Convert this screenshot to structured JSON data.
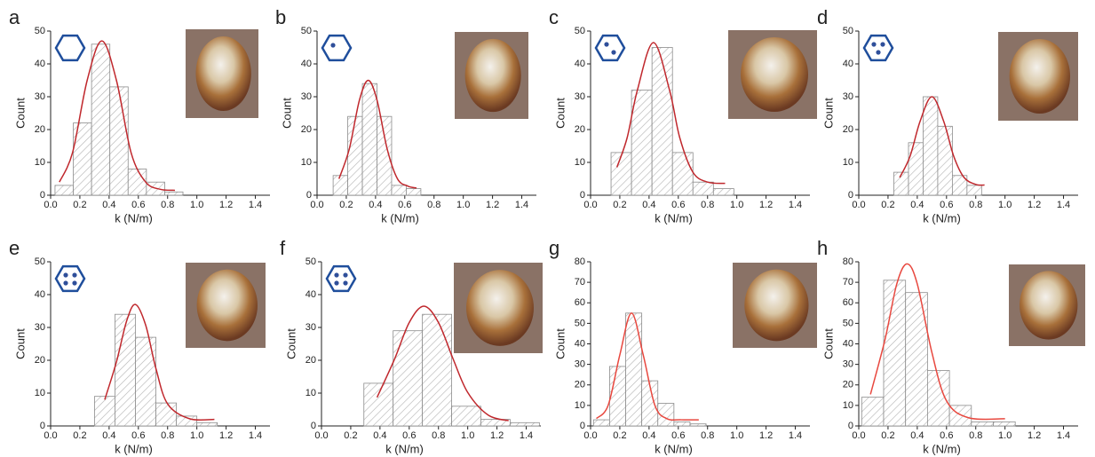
{
  "chart_data": [
    {
      "type": "histogram",
      "label": "a",
      "x_label": "k (N/m)",
      "y_label": "Count",
      "bins": [
        0.03,
        0.155,
        0.28,
        0.405,
        0.53,
        0.655,
        0.78,
        0.905
      ],
      "values": [
        3,
        22,
        46,
        33,
        8,
        4,
        1
      ],
      "color": "#8c8c8c",
      "fit": {
        "x": [
          0.06,
          0.15,
          0.25,
          0.35,
          0.45,
          0.55,
          0.65,
          0.75,
          0.85
        ],
        "values": [
          4,
          13,
          35,
          47,
          35,
          13,
          4,
          1.8,
          1.5
        ],
        "color": "#c0282d"
      },
      "xlim": [
        0,
        1.5
      ],
      "xticks": [
        {
          "value": 0,
          "label": "0.0"
        },
        0.2,
        0.4,
        0.6,
        0.8,
        {
          "value": 1,
          "label": "1.0"
        },
        1.2,
        1.4
      ],
      "ylim": [
        0,
        50
      ],
      "yticks": [
        0,
        10,
        20,
        30,
        40,
        50
      ]
    },
    {
      "type": "histogram",
      "label": "b",
      "x_label": "k (N/m)",
      "y_label": "Count",
      "bins": [
        0.11,
        0.21,
        0.31,
        0.41,
        0.51,
        0.61,
        0.71
      ],
      "values": [
        6,
        24,
        34,
        24,
        3,
        2
      ],
      "color": "#8c8c8c",
      "fit": {
        "x": [
          0.15,
          0.22,
          0.29,
          0.35,
          0.41,
          0.48,
          0.55,
          0.62,
          0.68
        ],
        "values": [
          5,
          14,
          29,
          35,
          29,
          14,
          5,
          2.8,
          2.2
        ],
        "color": "#c0282d"
      },
      "xlim": [
        0,
        1.5
      ],
      "xticks": [
        {
          "value": 0,
          "label": "0.0"
        },
        0.2,
        0.4,
        0.6,
        0.8,
        {
          "value": 1,
          "label": "1.0"
        },
        1.2,
        1.4
      ],
      "ylim": [
        0,
        50
      ],
      "yticks": [
        0,
        10,
        20,
        30,
        40,
        50
      ]
    },
    {
      "type": "histogram",
      "label": "c",
      "x_label": "k (N/m)",
      "y_label": "Count",
      "bins": [
        0.14,
        0.28,
        0.42,
        0.56,
        0.7,
        0.84,
        0.98
      ],
      "values": [
        13,
        32,
        45,
        13,
        4,
        2
      ],
      "color": "#8c8c8c",
      "fit": {
        "x": [
          0.18,
          0.25,
          0.32,
          0.43,
          0.54,
          0.61,
          0.7,
          0.8,
          0.92
        ],
        "values": [
          8.5,
          17.5,
          32,
          46.5,
          32,
          17.5,
          7,
          4,
          3.6
        ],
        "color": "#c0282d"
      },
      "xlim": [
        0,
        1.5
      ],
      "xticks": [
        {
          "value": 0,
          "label": "0.0"
        },
        0.2,
        0.4,
        0.6,
        0.8,
        {
          "value": 1,
          "label": "1.0"
        },
        1.2,
        1.4
      ],
      "ylim": [
        0,
        50
      ],
      "yticks": [
        0,
        10,
        20,
        30,
        40,
        50
      ]
    },
    {
      "type": "histogram",
      "label": "d",
      "x_label": "k (N/m)",
      "y_label": "Count",
      "bins": [
        0.24,
        0.34,
        0.44,
        0.54,
        0.64,
        0.74,
        0.84
      ],
      "values": [
        7,
        16,
        30,
        21,
        6,
        3
      ],
      "color": "#8c8c8c",
      "fit": {
        "x": [
          0.28,
          0.35,
          0.42,
          0.5,
          0.58,
          0.65,
          0.72,
          0.8,
          0.86
        ],
        "values": [
          5.4,
          11.8,
          22.6,
          30,
          22.6,
          11.8,
          5.4,
          3.3,
          3.1
        ],
        "color": "#c0282d"
      },
      "xlim": [
        0,
        1.5
      ],
      "xticks": [
        {
          "value": 0,
          "label": "0.0"
        },
        0.2,
        0.4,
        0.6,
        0.8,
        {
          "value": 1,
          "label": "1.0"
        },
        1.2,
        1.4
      ],
      "ylim": [
        0,
        50
      ],
      "yticks": [
        0,
        10,
        20,
        30,
        40,
        50
      ]
    },
    {
      "type": "histogram",
      "label": "e",
      "x_label": "k (N/m)",
      "y_label": "Count",
      "bins": [
        0.3,
        0.44,
        0.58,
        0.72,
        0.86,
        1.0,
        1.14
      ],
      "values": [
        9,
        34,
        27,
        7,
        3,
        1
      ],
      "color": "#8c8c8c",
      "fit": {
        "x": [
          0.37,
          0.45,
          0.52,
          0.58,
          0.65,
          0.72,
          0.8,
          0.95,
          1.12
        ],
        "values": [
          8,
          19.5,
          32,
          37,
          30.7,
          17.5,
          6.7,
          2.2,
          2
        ],
        "color": "#c0282d"
      },
      "xlim": [
        0,
        1.5
      ],
      "xticks": [
        {
          "value": 0,
          "label": "0.0"
        },
        0.2,
        0.4,
        0.6,
        0.8,
        {
          "value": 1,
          "label": "1.0"
        },
        1.2,
        1.4
      ],
      "ylim": [
        0,
        50
      ],
      "yticks": [
        0,
        10,
        20,
        30,
        40,
        50
      ]
    },
    {
      "type": "histogram",
      "label": "f",
      "x_label": "k (N/m)",
      "y_label": "Count",
      "bins": [
        0.29,
        0.49,
        0.69,
        0.89,
        1.09,
        1.29,
        1.49
      ],
      "values": [
        13,
        29,
        34,
        6,
        2,
        1
      ],
      "color": "#8c8c8c",
      "fit": {
        "x": [
          0.38,
          0.5,
          0.6,
          0.7,
          0.8,
          0.9,
          1.0,
          1.14,
          1.28
        ],
        "values": [
          8.7,
          20.4,
          31.5,
          36.5,
          31.5,
          20.4,
          10.2,
          3.3,
          1.6
        ],
        "color": "#c0282d"
      },
      "xlim": [
        0,
        1.5
      ],
      "xticks": [
        {
          "value": 0,
          "label": "0.0"
        },
        0.2,
        0.4,
        0.6,
        0.8,
        {
          "value": 1,
          "label": "1.0"
        },
        1.2,
        1.4
      ],
      "ylim": [
        0,
        50
      ],
      "yticks": [
        0,
        10,
        20,
        30,
        40,
        50
      ]
    },
    {
      "type": "histogram",
      "label": "g",
      "x_label": "k (N/m)",
      "y_label": "Count",
      "bins": [
        0.02,
        0.13,
        0.24,
        0.35,
        0.46,
        0.57,
        0.68,
        0.79
      ],
      "values": [
        3,
        29,
        55,
        22,
        11,
        2,
        1
      ],
      "color": "#8c8c8c",
      "fit": {
        "x": [
          0.04,
          0.12,
          0.2,
          0.28,
          0.36,
          0.44,
          0.52,
          0.62,
          0.74
        ],
        "values": [
          3.6,
          10,
          34.6,
          55,
          34.6,
          10,
          3.6,
          3,
          3
        ],
        "color": "#e8483f"
      },
      "xlim": [
        0,
        1.5
      ],
      "xticks": [
        {
          "value": 0,
          "label": "0.0"
        },
        0.2,
        0.4,
        0.6,
        0.8,
        {
          "value": 1,
          "label": "1.0"
        },
        1.2,
        1.4
      ],
      "ylim": [
        0,
        80
      ],
      "yticks": [
        0,
        10,
        20,
        30,
        40,
        50,
        60,
        70,
        80
      ]
    },
    {
      "type": "histogram",
      "label": "h",
      "x_label": "k (N/m)",
      "y_label": "Count",
      "bins": [
        0.02,
        0.17,
        0.32,
        0.47,
        0.62,
        0.77,
        0.92,
        1.07
      ],
      "values": [
        14,
        71,
        65,
        27,
        10,
        2,
        2
      ],
      "color": "#8c8c8c",
      "fit": {
        "x": [
          0.08,
          0.18,
          0.26,
          0.33,
          0.4,
          0.5,
          0.6,
          0.75,
          1.0
        ],
        "values": [
          15.4,
          42.3,
          69.2,
          79,
          69.2,
          35.8,
          12.2,
          4,
          3.5
        ],
        "color": "#e8483f"
      },
      "xlim": [
        0,
        1.5
      ],
      "xticks": [
        {
          "value": 0,
          "label": "0.0"
        },
        0.2,
        0.4,
        0.6,
        0.8,
        {
          "value": 1,
          "label": "1.0"
        },
        1.2,
        1.4
      ],
      "ylim": [
        0,
        80
      ],
      "yticks": [
        0,
        10,
        20,
        30,
        40,
        50,
        60,
        70,
        80
      ]
    }
  ]
}
